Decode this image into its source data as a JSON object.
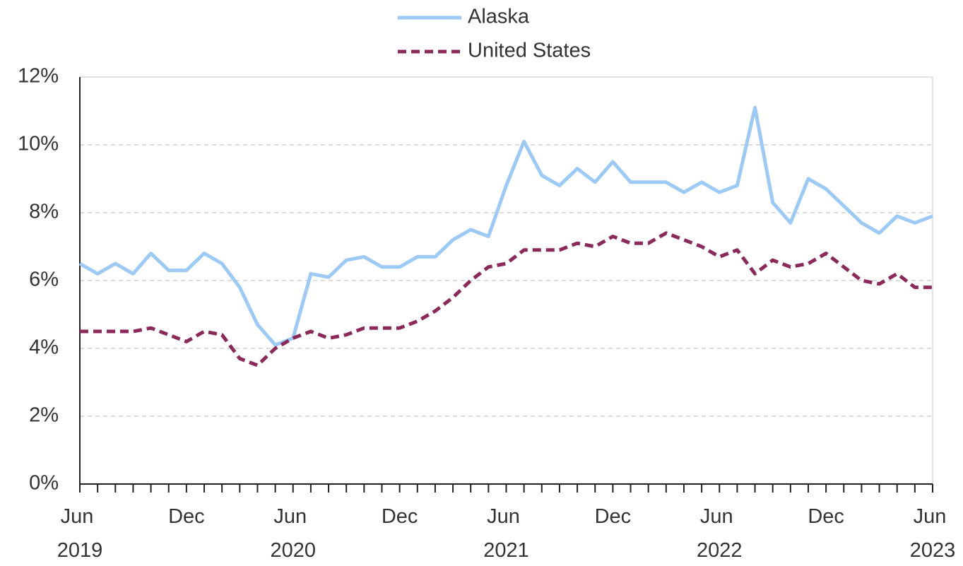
{
  "chart_data": {
    "type": "line",
    "categories": [
      "Jun 2019",
      null,
      null,
      null,
      null,
      null,
      "Dec",
      null,
      null,
      null,
      null,
      null,
      "Jun 2020",
      null,
      null,
      null,
      null,
      null,
      "Dec",
      null,
      null,
      null,
      null,
      null,
      "Jun 2021",
      null,
      null,
      null,
      null,
      null,
      "Dec",
      null,
      null,
      null,
      null,
      null,
      "Jun 2022",
      null,
      null,
      null,
      null,
      null,
      "Dec",
      null,
      null,
      null,
      null,
      null,
      "Jun 2023"
    ],
    "series": [
      {
        "name": "Alaska",
        "color": "#9dc9f5",
        "dashed": false,
        "values": [
          6.5,
          6.2,
          6.5,
          6.2,
          6.8,
          6.3,
          6.3,
          6.8,
          6.5,
          5.8,
          4.7,
          4.1,
          4.3,
          6.2,
          6.1,
          6.6,
          6.7,
          6.4,
          6.4,
          6.7,
          6.7,
          7.2,
          7.5,
          7.3,
          8.8,
          10.1,
          9.1,
          8.8,
          9.3,
          8.9,
          9.5,
          8.9,
          8.9,
          8.9,
          8.6,
          8.9,
          8.6,
          8.8,
          11.1,
          8.3,
          7.7,
          9.0,
          8.7,
          8.2,
          7.7,
          7.4,
          7.9,
          7.7,
          7.9
        ]
      },
      {
        "name": "United States",
        "color": "#8b2a5a",
        "dashed": true,
        "values": [
          4.5,
          4.5,
          4.5,
          4.5,
          4.6,
          4.4,
          4.2,
          4.5,
          4.4,
          3.7,
          3.5,
          4.0,
          4.3,
          4.5,
          4.3,
          4.4,
          4.6,
          4.6,
          4.6,
          4.8,
          5.1,
          5.5,
          6.0,
          6.4,
          6.5,
          6.9,
          6.9,
          6.9,
          7.1,
          7.0,
          7.3,
          7.1,
          7.1,
          7.4,
          7.2,
          7.0,
          6.7,
          6.9,
          6.2,
          6.6,
          6.4,
          6.5,
          6.8,
          6.4,
          6.0,
          5.9,
          6.2,
          5.8,
          5.8
        ]
      }
    ],
    "ylim": [
      0,
      12
    ],
    "yticks": [
      {
        "value": 0,
        "label": "0%"
      },
      {
        "value": 2,
        "label": "2%"
      },
      {
        "value": 4,
        "label": "4%"
      },
      {
        "value": 6,
        "label": "6%"
      },
      {
        "value": 8,
        "label": "8%"
      },
      {
        "value": 10,
        "label": "10%"
      },
      {
        "value": 12,
        "label": "12%"
      }
    ],
    "grid": true,
    "legend": "top"
  }
}
